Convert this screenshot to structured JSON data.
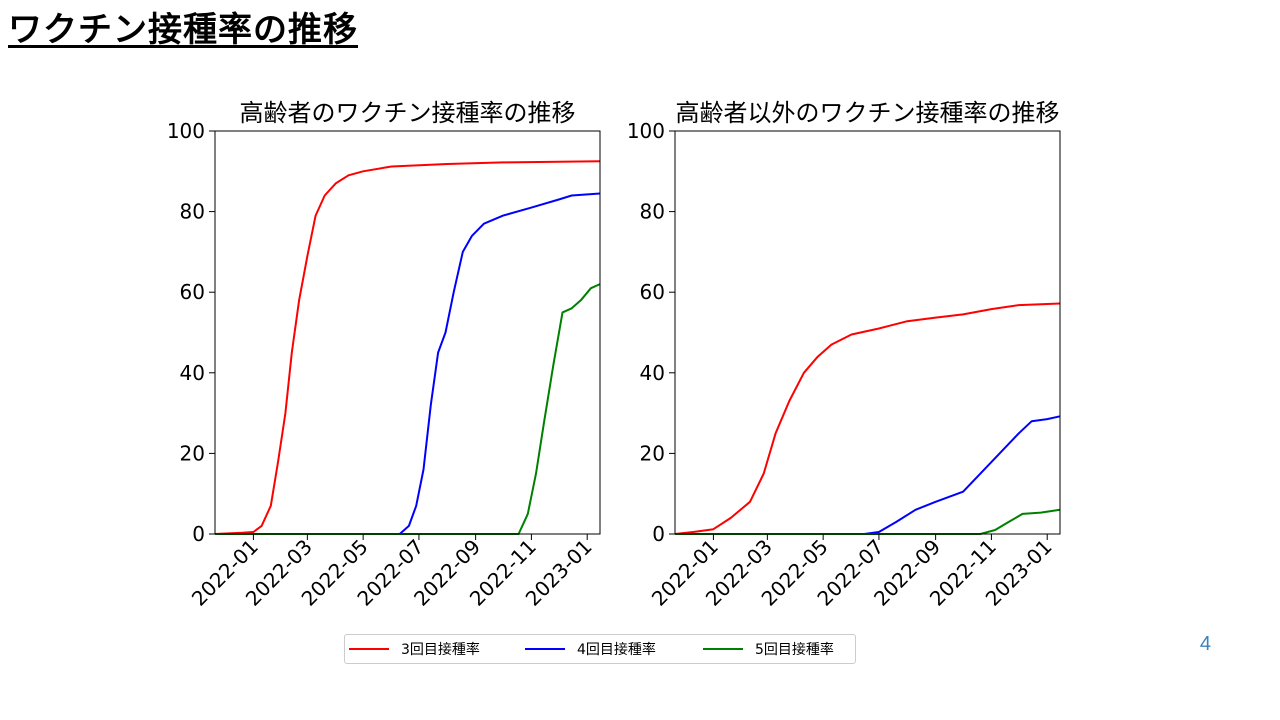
{
  "slide": {
    "title": "ワクチン接種率の推移",
    "page_number": "4"
  },
  "legend": [
    {
      "label": "3回目接種率",
      "color": "#ff0000"
    },
    {
      "label": "4回目接種率",
      "color": "#0000ff"
    },
    {
      "label": "5回目接種率",
      "color": "#008000"
    }
  ],
  "chart_data": [
    {
      "type": "line",
      "title": "高齢者のワクチン接種率の推移",
      "xlabel": "",
      "ylabel": "",
      "ylim": [
        0,
        100
      ],
      "xlim": [
        "2021-11-20",
        "2023-01-15"
      ],
      "yticks": [
        0,
        20,
        40,
        60,
        80,
        100
      ],
      "xticks": [
        "2022-01",
        "2022-03",
        "2022-05",
        "2022-07",
        "2022-09",
        "2022-11",
        "2023-01"
      ],
      "grid": false,
      "series": [
        {
          "name": "3回目接種率",
          "color": "#ff0000",
          "points": [
            [
              "2021-11-20",
              0
            ],
            [
              "2021-12-20",
              0.3
            ],
            [
              "2022-01-01",
              0.5
            ],
            [
              "2022-01-10",
              2
            ],
            [
              "2022-01-20",
              7
            ],
            [
              "2022-01-28",
              18
            ],
            [
              "2022-02-05",
              30
            ],
            [
              "2022-02-12",
              45
            ],
            [
              "2022-02-20",
              58
            ],
            [
              "2022-03-01",
              69
            ],
            [
              "2022-03-10",
              79
            ],
            [
              "2022-03-20",
              84
            ],
            [
              "2022-04-01",
              87
            ],
            [
              "2022-04-15",
              89
            ],
            [
              "2022-05-01",
              90
            ],
            [
              "2022-06-01",
              91.2
            ],
            [
              "2022-08-01",
              91.8
            ],
            [
              "2022-10-01",
              92.2
            ],
            [
              "2023-01-15",
              92.5
            ]
          ]
        },
        {
          "name": "4回目接種率",
          "color": "#0000ff",
          "points": [
            [
              "2021-11-20",
              0
            ],
            [
              "2022-06-10",
              0
            ],
            [
              "2022-06-20",
              2
            ],
            [
              "2022-06-28",
              7
            ],
            [
              "2022-07-06",
              16
            ],
            [
              "2022-07-14",
              32
            ],
            [
              "2022-07-22",
              45
            ],
            [
              "2022-07-30",
              50
            ],
            [
              "2022-08-08",
              60
            ],
            [
              "2022-08-18",
              70
            ],
            [
              "2022-08-28",
              74
            ],
            [
              "2022-09-10",
              77
            ],
            [
              "2022-10-01",
              79
            ],
            [
              "2022-11-01",
              81
            ],
            [
              "2022-12-01",
              83
            ],
            [
              "2022-12-15",
              84
            ],
            [
              "2023-01-15",
              84.5
            ]
          ]
        },
        {
          "name": "5回目接種率",
          "color": "#008000",
          "points": [
            [
              "2021-11-20",
              0
            ],
            [
              "2022-10-18",
              0
            ],
            [
              "2022-10-28",
              5
            ],
            [
              "2022-11-06",
              15
            ],
            [
              "2022-11-15",
              28
            ],
            [
              "2022-11-25",
              42
            ],
            [
              "2022-12-05",
              55
            ],
            [
              "2022-12-15",
              56
            ],
            [
              "2022-12-25",
              58
            ],
            [
              "2023-01-05",
              61
            ],
            [
              "2023-01-15",
              62
            ]
          ]
        }
      ]
    },
    {
      "type": "line",
      "title": "高齢者以外のワクチン接種率の推移",
      "xlabel": "",
      "ylabel": "",
      "ylim": [
        0,
        100
      ],
      "xlim": [
        "2021-11-20",
        "2023-01-15"
      ],
      "yticks": [
        0,
        20,
        40,
        60,
        80,
        100
      ],
      "xticks": [
        "2022-01",
        "2022-03",
        "2022-05",
        "2022-07",
        "2022-09",
        "2022-11",
        "2023-01"
      ],
      "grid": false,
      "series": [
        {
          "name": "3回目接種率",
          "color": "#ff0000",
          "points": [
            [
              "2021-11-20",
              0
            ],
            [
              "2021-12-10",
              0.5
            ],
            [
              "2022-01-01",
              1.2
            ],
            [
              "2022-01-20",
              4
            ],
            [
              "2022-02-10",
              8
            ],
            [
              "2022-02-25",
              15
            ],
            [
              "2022-03-10",
              25
            ],
            [
              "2022-03-25",
              33
            ],
            [
              "2022-04-10",
              40
            ],
            [
              "2022-04-25",
              44
            ],
            [
              "2022-05-10",
              47
            ],
            [
              "2022-06-01",
              49.5
            ],
            [
              "2022-07-01",
              51
            ],
            [
              "2022-08-01",
              52.8
            ],
            [
              "2022-09-01",
              53.7
            ],
            [
              "2022-10-01",
              54.5
            ],
            [
              "2022-11-01",
              55.8
            ],
            [
              "2022-12-01",
              56.8
            ],
            [
              "2023-01-15",
              57.2
            ]
          ]
        },
        {
          "name": "4回目接種率",
          "color": "#0000ff",
          "points": [
            [
              "2021-11-20",
              0
            ],
            [
              "2022-06-15",
              0
            ],
            [
              "2022-07-01",
              0.5
            ],
            [
              "2022-07-20",
              3
            ],
            [
              "2022-08-10",
              6
            ],
            [
              "2022-09-01",
              8
            ],
            [
              "2022-10-01",
              10.5
            ],
            [
              "2022-10-20",
              15
            ],
            [
              "2022-11-10",
              20
            ],
            [
              "2022-12-01",
              25
            ],
            [
              "2022-12-15",
              28
            ],
            [
              "2023-01-01",
              28.5
            ],
            [
              "2023-01-15",
              29.2
            ]
          ]
        },
        {
          "name": "5回目接種率",
          "color": "#008000",
          "points": [
            [
              "2021-11-20",
              0
            ],
            [
              "2022-10-20",
              0
            ],
            [
              "2022-11-05",
              1
            ],
            [
              "2022-11-20",
              3
            ],
            [
              "2022-12-05",
              5
            ],
            [
              "2022-12-25",
              5.3
            ],
            [
              "2023-01-15",
              6
            ]
          ]
        }
      ]
    }
  ]
}
